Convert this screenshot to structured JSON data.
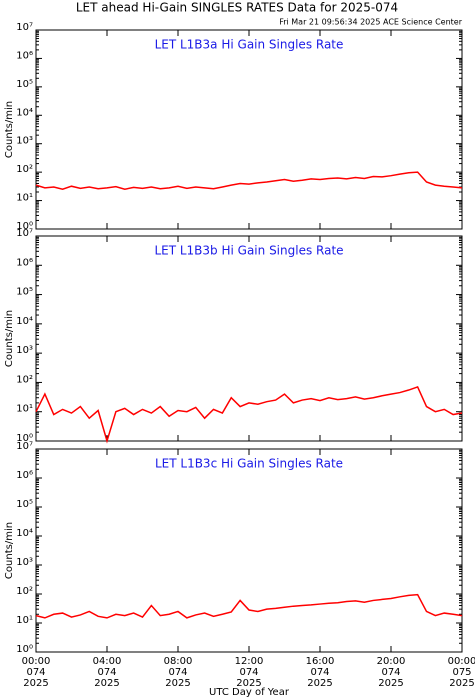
{
  "header": {
    "title": "LET ahead Hi-Gain SINGLES RATES Data for 2025-074",
    "subtitle": "Fri Mar 21 09:56:34 2025 ACE Science Center",
    "xlabel": "UTC Day of Year"
  },
  "chart_data": [
    {
      "type": "line",
      "title": "LET L1B3a Hi Gain Singles Rate",
      "ylabel": "Counts/min",
      "log_y": true,
      "color": "#ff0000",
      "x": [
        0,
        0.5,
        1,
        1.5,
        2,
        2.5,
        3,
        3.5,
        4,
        4.5,
        5,
        5.5,
        6,
        6.5,
        7,
        7.5,
        8,
        8.5,
        9,
        9.5,
        10,
        10.5,
        11,
        11.5,
        12,
        12.5,
        13,
        13.5,
        14,
        14.5,
        15,
        15.5,
        16,
        16.5,
        17,
        17.5,
        18,
        18.5,
        19,
        19.5,
        20,
        20.5,
        21,
        21.5,
        22,
        22.5,
        23,
        23.5,
        24
      ],
      "values": [
        35,
        28,
        30,
        25,
        32,
        27,
        30,
        26,
        28,
        31,
        25,
        29,
        27,
        30,
        26,
        28,
        32,
        27,
        30,
        28,
        26,
        30,
        35,
        40,
        38,
        42,
        45,
        50,
        55,
        48,
        52,
        58,
        55,
        60,
        62,
        58,
        65,
        60,
        70,
        68,
        75,
        85,
        95,
        100,
        45,
        35,
        32,
        30,
        28
      ],
      "xlim": [
        0,
        24
      ],
      "xticks": [
        0,
        4,
        8,
        12,
        16,
        20,
        24
      ],
      "ylim": [
        1,
        10000000
      ],
      "yticks": [
        {
          "value": 1,
          "label": "10⁰"
        },
        {
          "value": 10,
          "label": "10¹"
        },
        {
          "value": 100,
          "label": "10²"
        },
        {
          "value": 1000,
          "label": "10³"
        },
        {
          "value": 10000,
          "label": "10⁴"
        },
        {
          "value": 100000,
          "label": "10⁵"
        },
        {
          "value": 1000000,
          "label": "10⁶"
        },
        {
          "value": 10000000,
          "label": "10⁷"
        }
      ]
    },
    {
      "type": "line",
      "title": "LET L1B3b Hi Gain Singles Rate",
      "ylabel": "Counts/min",
      "log_y": true,
      "color": "#ff0000",
      "x": [
        0,
        0.5,
        1,
        1.5,
        2,
        2.5,
        3,
        3.5,
        4,
        4.5,
        5,
        5.5,
        6,
        6.5,
        7,
        7.5,
        8,
        8.5,
        9,
        9.5,
        10,
        10.5,
        11,
        11.5,
        12,
        12.5,
        13,
        13.5,
        14,
        14.5,
        15,
        15.5,
        16,
        16.5,
        17,
        17.5,
        18,
        18.5,
        19,
        19.5,
        20,
        20.5,
        21,
        21.5,
        22,
        22.5,
        23,
        23.5,
        24
      ],
      "values": [
        10,
        40,
        8,
        12,
        9,
        15,
        6,
        11,
        1,
        10,
        13,
        8,
        12,
        9,
        15,
        7,
        11,
        10,
        14,
        6,
        12,
        9,
        30,
        15,
        20,
        18,
        22,
        25,
        40,
        20,
        25,
        28,
        24,
        30,
        26,
        28,
        32,
        27,
        30,
        35,
        40,
        45,
        55,
        70,
        15,
        10,
        12,
        8,
        9
      ],
      "xlim": [
        0,
        24
      ],
      "xticks": [
        0,
        4,
        8,
        12,
        16,
        20,
        24
      ],
      "ylim": [
        1,
        10000000
      ],
      "yticks": [
        {
          "value": 1,
          "label": "10⁰"
        },
        {
          "value": 10,
          "label": "10¹"
        },
        {
          "value": 100,
          "label": "10²"
        },
        {
          "value": 1000,
          "label": "10³"
        },
        {
          "value": 10000,
          "label": "10⁴"
        },
        {
          "value": 100000,
          "label": "10⁵"
        },
        {
          "value": 1000000,
          "label": "10⁶"
        },
        {
          "value": 10000000,
          "label": "10⁷"
        }
      ]
    },
    {
      "type": "line",
      "title": "LET L1B3c Hi Gain Singles Rate",
      "ylabel": "Counts/min",
      "log_y": true,
      "color": "#ff0000",
      "x": [
        0,
        0.5,
        1,
        1.5,
        2,
        2.5,
        3,
        3.5,
        4,
        4.5,
        5,
        5.5,
        6,
        6.5,
        7,
        7.5,
        8,
        8.5,
        9,
        9.5,
        10,
        10.5,
        11,
        11.5,
        12,
        12.5,
        13,
        13.5,
        14,
        14.5,
        15,
        15.5,
        16,
        16.5,
        17,
        17.5,
        18,
        18.5,
        19,
        19.5,
        20,
        20.5,
        21,
        21.5,
        22,
        22.5,
        23,
        23.5,
        24
      ],
      "values": [
        18,
        15,
        20,
        22,
        16,
        19,
        25,
        17,
        15,
        20,
        18,
        22,
        16,
        40,
        18,
        20,
        25,
        15,
        19,
        22,
        17,
        20,
        24,
        60,
        28,
        25,
        30,
        32,
        35,
        38,
        40,
        42,
        45,
        48,
        50,
        55,
        58,
        52,
        60,
        65,
        70,
        80,
        90,
        95,
        25,
        18,
        22,
        20,
        18
      ],
      "xlim": [
        0,
        24
      ],
      "xticks": [
        {
          "value": 0,
          "label": "00:00",
          "day": "074",
          "year": "2025"
        },
        {
          "value": 4,
          "label": "04:00",
          "day": "074",
          "year": "2025"
        },
        {
          "value": 8,
          "label": "08:00",
          "day": "074",
          "year": "2025"
        },
        {
          "value": 12,
          "label": "12:00",
          "day": "074",
          "year": "2025"
        },
        {
          "value": 16,
          "label": "16:00",
          "day": "074",
          "year": "2025"
        },
        {
          "value": 20,
          "label": "20:00",
          "day": "074",
          "year": "2025"
        },
        {
          "value": 24,
          "label": "00:00",
          "day": "075",
          "year": "2025"
        }
      ],
      "ylim": [
        1,
        10000000
      ],
      "yticks": [
        {
          "value": 1,
          "label": "10⁰"
        },
        {
          "value": 10,
          "label": "10¹"
        },
        {
          "value": 100,
          "label": "10²"
        },
        {
          "value": 1000,
          "label": "10³"
        },
        {
          "value": 10000,
          "label": "10⁴"
        },
        {
          "value": 100000,
          "label": "10⁵"
        },
        {
          "value": 1000000,
          "label": "10⁶"
        },
        {
          "value": 10000000,
          "label": "10⁷"
        }
      ]
    }
  ]
}
